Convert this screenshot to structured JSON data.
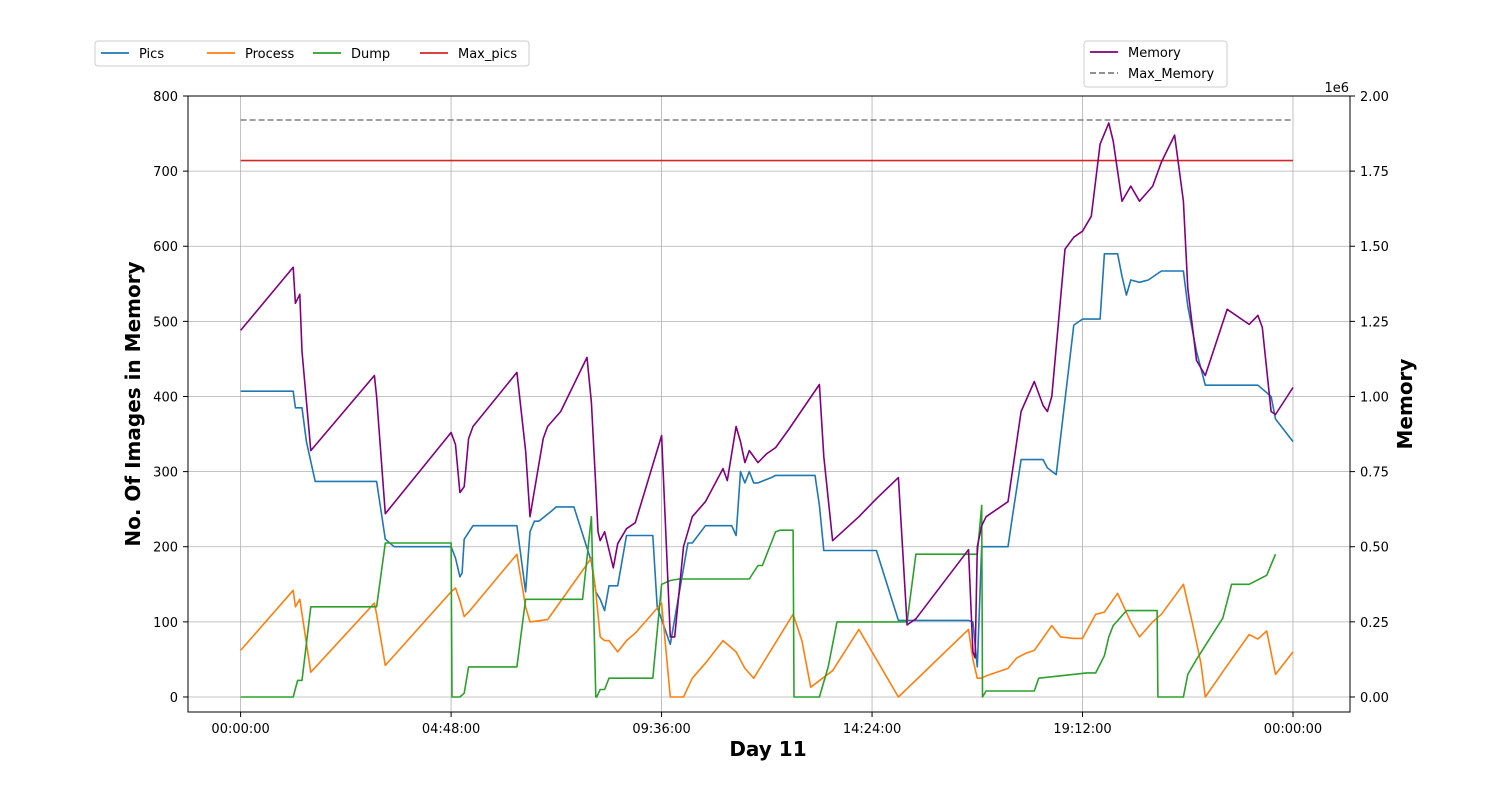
{
  "chart_data": {
    "type": "line",
    "xlabel": "Day 11",
    "ylabel_left": "No. Of Images in Memory",
    "ylabel_right": "Memory",
    "right_offset_label": "1e6",
    "x_unit": "hours since 00:00:00",
    "xlim": [
      -1.2,
      25.3
    ],
    "ylim_left": [
      -20,
      800
    ],
    "ylim_right": [
      -0.05,
      2.0
    ],
    "x_ticks": [
      {
        "value": 0,
        "label": "00:00:00"
      },
      {
        "value": 4.8,
        "label": "04:48:00"
      },
      {
        "value": 9.6,
        "label": "09:36:00"
      },
      {
        "value": 14.4,
        "label": "14:24:00"
      },
      {
        "value": 19.2,
        "label": "19:12:00"
      },
      {
        "value": 24,
        "label": "00:00:00"
      }
    ],
    "y_left_ticks": [
      {
        "value": 0,
        "label": "0"
      },
      {
        "value": 100,
        "label": "100"
      },
      {
        "value": 200,
        "label": "200"
      },
      {
        "value": 300,
        "label": "300"
      },
      {
        "value": 400,
        "label": "400"
      },
      {
        "value": 500,
        "label": "500"
      },
      {
        "value": 600,
        "label": "600"
      },
      {
        "value": 700,
        "label": "700"
      },
      {
        "value": 800,
        "label": "800"
      }
    ],
    "y_right_ticks": [
      {
        "value": 0,
        "label": "0.00"
      },
      {
        "value": 0.25,
        "label": "0.25"
      },
      {
        "value": 0.5,
        "label": "0.50"
      },
      {
        "value": 0.75,
        "label": "0.75"
      },
      {
        "value": 1.0,
        "label": "1.00"
      },
      {
        "value": 1.25,
        "label": "1.25"
      },
      {
        "value": 1.5,
        "label": "1.50"
      },
      {
        "value": 1.75,
        "label": "1.75"
      },
      {
        "value": 2.0,
        "label": "2.00"
      }
    ],
    "grid": true,
    "legend_left_position": "top-left, above plot",
    "legend_right_position": "top-right, above plot",
    "series": [
      {
        "name": "Pics",
        "axis": "left",
        "color": "#1f77b4",
        "style": "solid",
        "x": [
          0,
          1.2,
          1.25,
          1.4,
          1.5,
          1.7,
          3.1,
          3.3,
          3.5,
          4.8,
          4.9,
          5.0,
          5.05,
          5.1,
          5.3,
          5.4,
          5.5,
          6.3,
          6.5,
          6.6,
          6.7,
          6.8,
          7.1,
          7.2,
          7.3,
          7.6,
          8.0,
          8.1,
          8.2,
          8.3,
          8.4,
          8.6,
          8.8,
          9.0,
          9.4,
          9.5,
          9.8,
          10.2,
          10.3,
          10.6,
          10.7,
          11.2,
          11.3,
          11.4,
          11.5,
          11.6,
          11.7,
          11.8,
          12.1,
          12.2,
          12.5,
          13.1,
          13.2,
          13.3,
          13.5,
          13.8,
          14.0,
          14.5,
          15.0,
          15.2,
          15.5,
          16.6,
          16.7,
          16.8,
          16.9,
          17.0,
          17.5,
          17.6,
          17.8,
          18.3,
          18.4,
          18.6,
          19.0,
          19.2,
          19.6,
          19.7,
          20.0,
          20.1,
          20.2,
          20.3,
          20.5,
          20.7,
          21.0,
          21.2,
          21.5,
          21.6,
          21.8,
          22.0,
          22.5,
          23.0,
          23.2,
          23.4,
          23.5,
          23.6,
          24
        ],
        "y": [
          407,
          407,
          385,
          385,
          340,
          287,
          287,
          210,
          200,
          200,
          185,
          160,
          165,
          210,
          228,
          228,
          228,
          228,
          140,
          220,
          234,
          234,
          248,
          253,
          253,
          253,
          180,
          140,
          130,
          115,
          148,
          148,
          215,
          215,
          215,
          120,
          70,
          205,
          205,
          228,
          228,
          228,
          215,
          300,
          285,
          300,
          285,
          285,
          292,
          295,
          295,
          295,
          255,
          195,
          195,
          195,
          195,
          195,
          102,
          102,
          102,
          102,
          100,
          40,
          200,
          200,
          200,
          240,
          316,
          316,
          305,
          296,
          495,
          503,
          503,
          590,
          590,
          560,
          535,
          555,
          552,
          555,
          567,
          567,
          567,
          520,
          460,
          415,
          415,
          415,
          415,
          405,
          400,
          370,
          340
        ]
      },
      {
        "name": "Process",
        "axis": "left",
        "color": "#ff7f0e",
        "style": "solid",
        "x": [
          0,
          1.2,
          1.25,
          1.35,
          1.6,
          3.05,
          3.1,
          3.3,
          4.8,
          4.9,
          5.0,
          5.1,
          5.2,
          6.3,
          6.5,
          6.6,
          7.0,
          8.0,
          8.1,
          8.2,
          8.3,
          8.4,
          8.6,
          8.8,
          9.0,
          9.6,
          9.8,
          10.1,
          10.3,
          10.6,
          11.0,
          11.3,
          11.5,
          11.7,
          12.6,
          12.8,
          13.0,
          13.5,
          14.1,
          15.0,
          16.6,
          16.7,
          16.8,
          16.9,
          17.0,
          17.5,
          17.7,
          17.9,
          18.1,
          18.5,
          18.7,
          19.0,
          19.2,
          19.5,
          19.7,
          20.0,
          20.3,
          20.5,
          20.8,
          21.0,
          21.5,
          21.7,
          21.9,
          22.0,
          22.5,
          23.0,
          23.2,
          23.4,
          23.6,
          24
        ],
        "y": [
          62,
          142,
          120,
          130,
          33,
          125,
          110,
          42,
          140,
          145,
          128,
          107,
          113,
          190,
          120,
          100,
          103,
          185,
          140,
          80,
          75,
          75,
          60,
          75,
          85,
          125,
          0,
          0,
          25,
          45,
          75,
          60,
          38,
          25,
          110,
          75,
          13,
          35,
          90,
          0,
          90,
          50,
          25,
          25,
          28,
          38,
          52,
          58,
          62,
          95,
          80,
          78,
          78,
          110,
          113,
          138,
          100,
          80,
          100,
          110,
          150,
          100,
          45,
          0,
          42,
          83,
          77,
          88,
          30,
          60
        ]
      },
      {
        "name": "Dump",
        "axis": "left",
        "color": "#2ca02c",
        "style": "solid",
        "x": [
          0,
          1.2,
          1.3,
          1.4,
          1.6,
          3.1,
          3.3,
          4.8,
          4.82,
          5.0,
          5.1,
          5.2,
          6.3,
          6.5,
          7.8,
          8.0,
          8.1,
          8.12,
          8.2,
          8.3,
          8.4,
          8.6,
          9.4,
          9.6,
          9.8,
          10.0,
          10.2,
          11.6,
          11.8,
          11.9,
          12.0,
          12.1,
          12.2,
          12.3,
          12.5,
          12.6,
          12.62,
          13.2,
          13.4,
          13.6,
          14.2,
          15.2,
          15.4,
          16.8,
          16.9,
          16.92,
          17.0,
          17.5,
          18.0,
          18.1,
          18.2,
          19.3,
          19.5,
          19.7,
          19.8,
          19.9,
          20.2,
          20.8,
          20.9,
          20.92,
          21.3,
          21.5,
          21.6,
          21.8,
          22.4,
          22.6,
          22.8,
          23.0,
          23.4,
          23.6
        ],
        "y": [
          0,
          0,
          22,
          22,
          120,
          120,
          205,
          205,
          0,
          0,
          5,
          40,
          40,
          130,
          130,
          240,
          0,
          0,
          10,
          10,
          25,
          25,
          25,
          150,
          155,
          157,
          157,
          157,
          175,
          175,
          190,
          205,
          220,
          222,
          222,
          222,
          0,
          0,
          40,
          100,
          100,
          100,
          190,
          190,
          255,
          0,
          8,
          8,
          8,
          8,
          25,
          32,
          32,
          55,
          80,
          95,
          115,
          115,
          115,
          0,
          0,
          0,
          30,
          50,
          105,
          150,
          150,
          150,
          162,
          190
        ]
      },
      {
        "name": "Max_pics",
        "axis": "left",
        "color": "#d62728",
        "style": "solid",
        "x": [
          0,
          24
        ],
        "y": [
          714,
          714
        ]
      },
      {
        "name": "Memory",
        "axis": "right",
        "color": "#800080",
        "style": "solid",
        "x": [
          0,
          1.2,
          1.25,
          1.35,
          1.4,
          1.6,
          3.05,
          3.1,
          3.3,
          4.8,
          4.9,
          5.0,
          5.1,
          5.2,
          5.3,
          6.3,
          6.5,
          6.6,
          6.9,
          7.0,
          7.3,
          7.9,
          8.0,
          8.1,
          8.15,
          8.2,
          8.3,
          8.5,
          8.6,
          8.8,
          9.0,
          9.6,
          9.8,
          9.9,
          10.1,
          10.3,
          10.6,
          11.0,
          11.1,
          11.3,
          11.4,
          11.5,
          11.6,
          11.7,
          11.8,
          12.0,
          12.2,
          12.5,
          13.2,
          13.3,
          13.5,
          14.1,
          14.5,
          15.0,
          15.2,
          15.4,
          16.6,
          16.7,
          16.75,
          16.8,
          16.9,
          17.0,
          17.5,
          17.8,
          18.1,
          18.3,
          18.4,
          18.5,
          18.8,
          19.0,
          19.2,
          19.4,
          19.6,
          19.8,
          19.9,
          20.0,
          20.1,
          20.3,
          20.5,
          20.8,
          21.0,
          21.3,
          21.5,
          21.6,
          21.8,
          22.0,
          22.5,
          23.0,
          23.2,
          23.3,
          23.5,
          23.6,
          24
        ],
        "y": [
          1.22,
          1.43,
          1.31,
          1.34,
          1.15,
          0.82,
          1.07,
          1.0,
          0.61,
          0.88,
          0.84,
          0.68,
          0.7,
          0.86,
          0.9,
          1.08,
          0.82,
          0.6,
          0.86,
          0.9,
          0.95,
          1.13,
          0.98,
          0.7,
          0.55,
          0.52,
          0.55,
          0.43,
          0.51,
          0.56,
          0.58,
          0.87,
          0.2,
          0.2,
          0.5,
          0.6,
          0.65,
          0.76,
          0.72,
          0.9,
          0.85,
          0.78,
          0.82,
          0.8,
          0.78,
          0.81,
          0.83,
          0.89,
          1.04,
          0.8,
          0.52,
          0.6,
          0.66,
          0.73,
          0.24,
          0.26,
          0.49,
          0.15,
          0.13,
          0.5,
          0.57,
          0.6,
          0.65,
          0.95,
          1.05,
          0.97,
          0.95,
          1.0,
          1.49,
          1.53,
          1.55,
          1.6,
          1.84,
          1.91,
          1.85,
          1.75,
          1.65,
          1.7,
          1.65,
          1.7,
          1.78,
          1.87,
          1.65,
          1.36,
          1.12,
          1.07,
          1.29,
          1.24,
          1.27,
          1.23,
          0.95,
          0.94,
          1.03
        ]
      },
      {
        "name": "Max_Memory",
        "axis": "right",
        "color": "#808080",
        "style": "dashed",
        "x": [
          0,
          24
        ],
        "y": [
          1.92,
          1.92
        ]
      }
    ]
  }
}
